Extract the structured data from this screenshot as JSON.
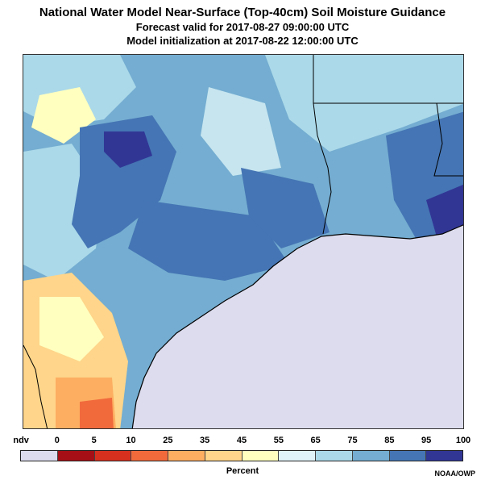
{
  "header": {
    "title": "National Water Model Near-Surface (Top-40cm) Soil Moisture Guidance",
    "valid": "Forecast valid for 2017-08-27 09:00:00 UTC",
    "init": "Model initialization at 2017-08-22 12:00:00 UTC"
  },
  "map": {
    "region": "Texas / Louisiana Gulf Coast",
    "water_color": "#dcdcee",
    "boundary_color": "#000000"
  },
  "legend": {
    "title": "Percent",
    "labels": [
      "ndv",
      "0",
      "5",
      "10",
      "25",
      "35",
      "45",
      "55",
      "65",
      "75",
      "85",
      "95",
      "100"
    ],
    "colors": [
      "#dcdcee",
      "#a50f15",
      "#d7301f",
      "#f16a3c",
      "#fdae61",
      "#fed58a",
      "#ffffbf",
      "#e0f3f8",
      "#abd9e9",
      "#74add1",
      "#4575b4",
      "#313695"
    ]
  },
  "credit": "NOAA/OWP"
}
